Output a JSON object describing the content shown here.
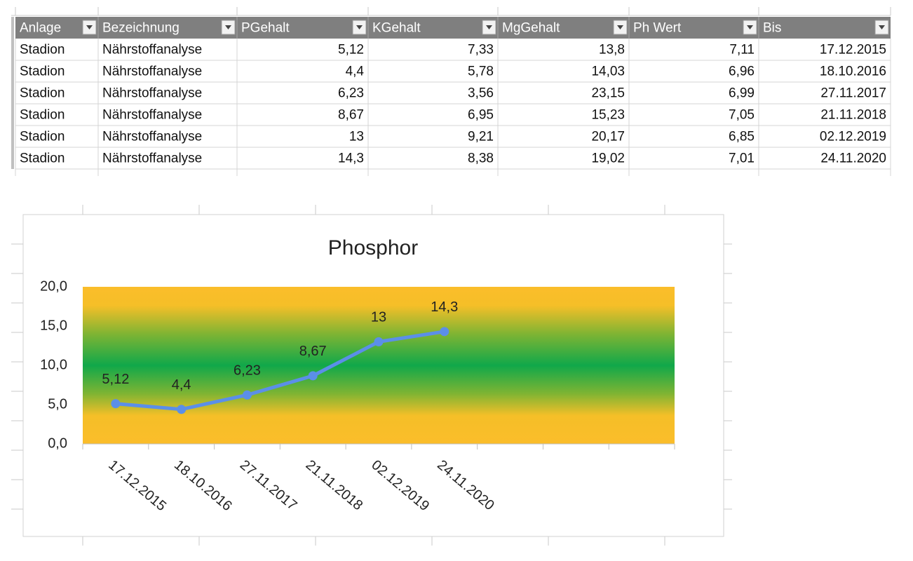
{
  "table": {
    "header": [
      "Anlage",
      "Bezeichnung",
      "PGehalt",
      "KGehalt",
      "MgGehalt",
      "Ph Wert",
      "Bis"
    ],
    "rows": [
      [
        "Stadion",
        "Nährstoffanalyse",
        "5,12",
        "7,33",
        "13,8",
        "7,11",
        "17.12.2015"
      ],
      [
        "Stadion",
        "Nährstoffanalyse",
        "4,4",
        "5,78",
        "14,03",
        "6,96",
        "18.10.2016"
      ],
      [
        "Stadion",
        "Nährstoffanalyse",
        "6,23",
        "3,56",
        "23,15",
        "6,99",
        "27.11.2017"
      ],
      [
        "Stadion",
        "Nährstoffanalyse",
        "8,67",
        "6,95",
        "15,23",
        "7,05",
        "21.11.2018"
      ],
      [
        "Stadion",
        "Nährstoffanalyse",
        "13",
        "9,21",
        "20,17",
        "6,85",
        "02.12.2019"
      ],
      [
        "Stadion",
        "Nährstoffanalyse",
        "14,3",
        "8,38",
        "19,02",
        "7,01",
        "24.11.2020"
      ]
    ]
  },
  "chart_data": {
    "type": "line",
    "title": "Phosphor",
    "categories": [
      "17.12.2015",
      "18.10.2016",
      "27.11.2017",
      "21.11.2018",
      "02.12.2019",
      "24.11.2020",
      null,
      null,
      null
    ],
    "values": [
      5.12,
      4.4,
      6.23,
      8.67,
      13,
      14.3,
      null,
      null,
      null
    ],
    "value_labels": [
      "5,12",
      "4,4",
      "6,23",
      "8,67",
      "13",
      "14,3",
      null,
      null,
      null
    ],
    "color": "#5b8fe8",
    "ylim": [
      0,
      20
    ],
    "yticks": [
      {
        "value": 0,
        "label": "0,0"
      },
      {
        "value": 5,
        "label": "5,0"
      },
      {
        "value": 10,
        "label": "10,0"
      },
      {
        "value": 15,
        "label": "15,0"
      },
      {
        "value": 20,
        "label": "20,0"
      }
    ]
  }
}
